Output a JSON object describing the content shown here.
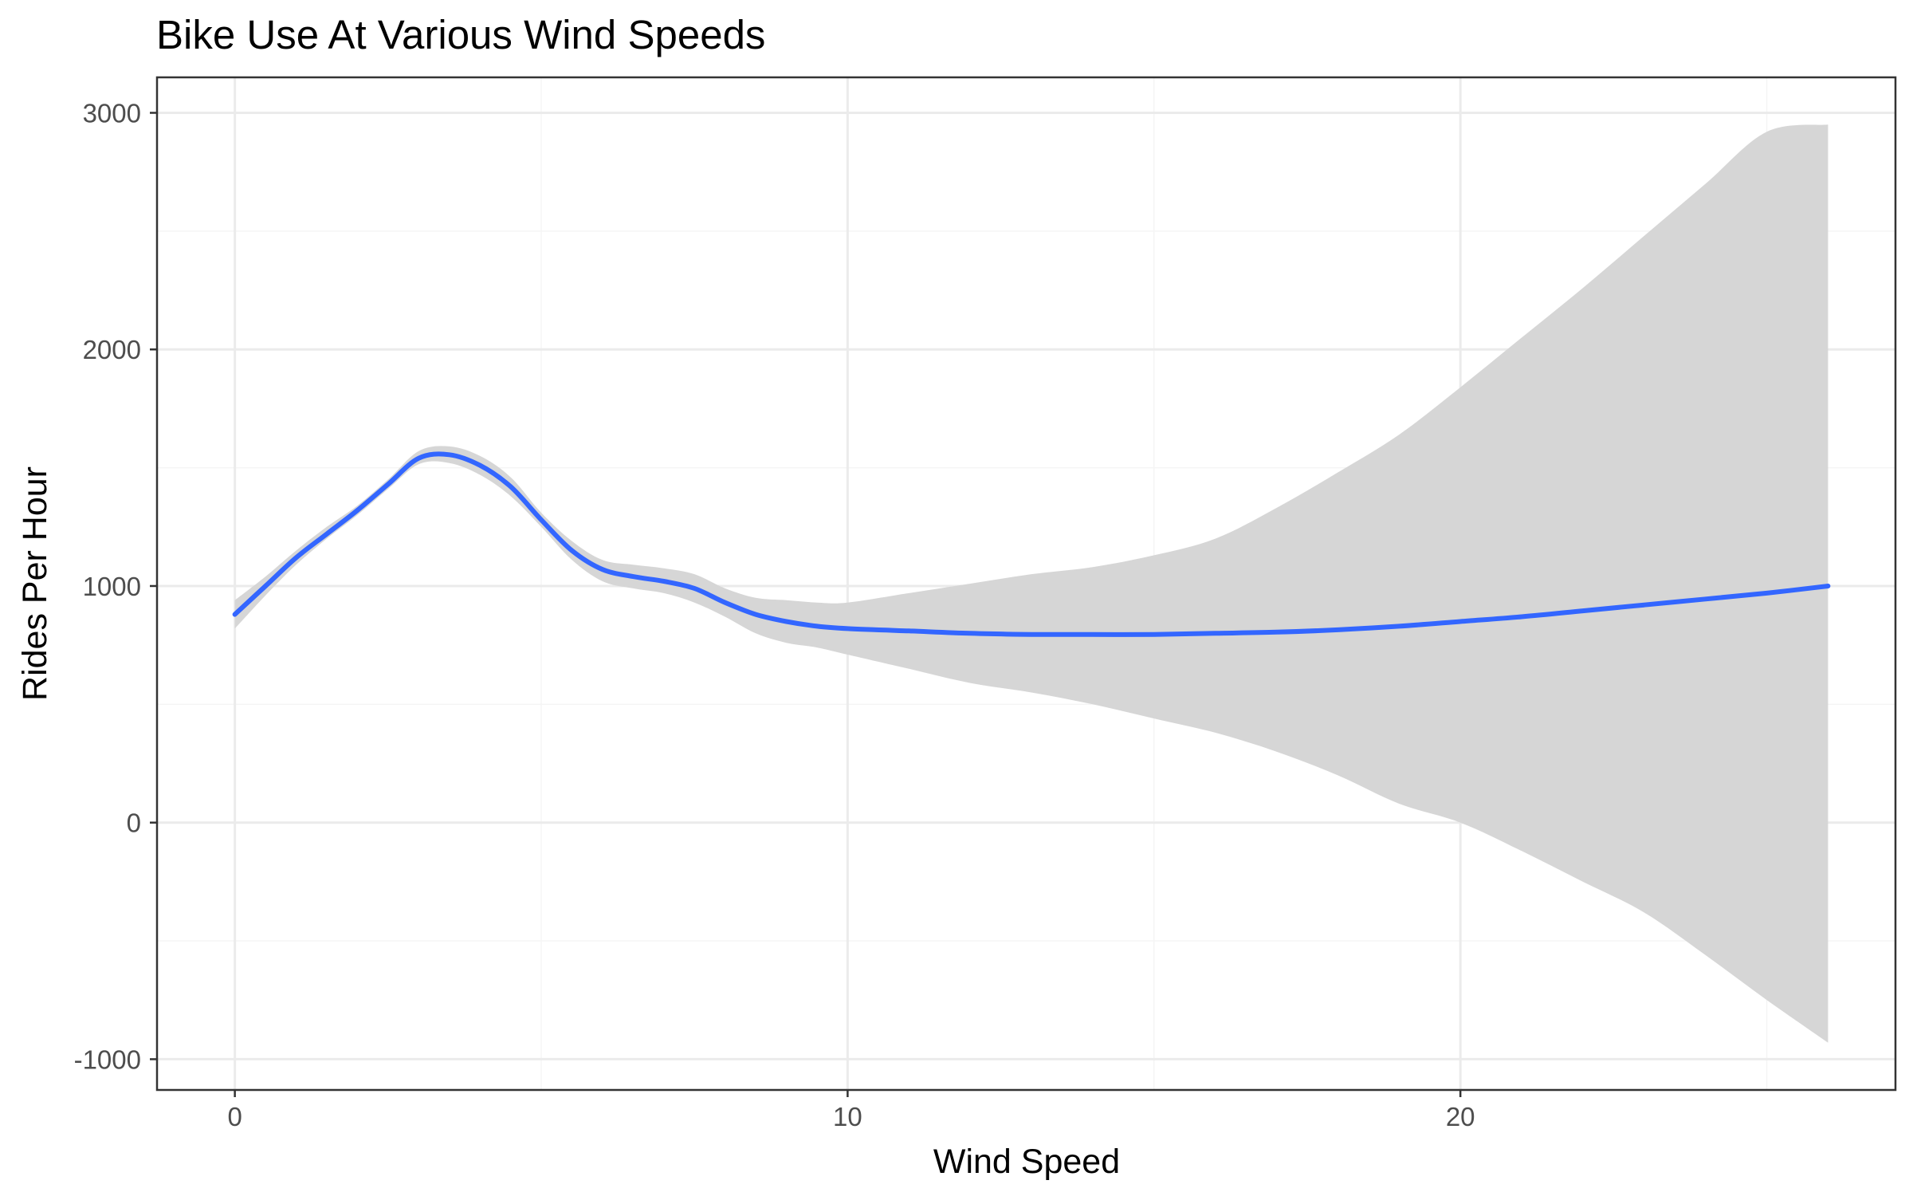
{
  "chart_data": {
    "type": "line",
    "title": "Bike Use At Various Wind Speeds",
    "xlabel": "Wind Speed",
    "ylabel": "Rides Per Hour",
    "xlim": [
      -1.27,
      27.1
    ],
    "ylim": [
      -1130,
      3150
    ],
    "x_ticks": [
      0,
      10,
      20
    ],
    "x_tick_labels": [
      "0",
      "10",
      "20"
    ],
    "y_ticks": [
      -1000,
      0,
      1000,
      2000,
      3000
    ],
    "y_tick_labels": [
      "-1000",
      "0",
      "1000",
      "2000",
      "3000"
    ],
    "x_minor_breaks": [
      5,
      15,
      25
    ],
    "y_minor_breaks": [
      -500,
      500,
      1500,
      2500
    ],
    "grid": true,
    "theme": "bw",
    "colors": {
      "line": "#3366ff",
      "ribbon": "#d6d6d6",
      "grid_major": "#ebebeb",
      "grid_minor": "#f5f5f5",
      "panel_border": "#333333"
    },
    "series": [
      {
        "role": "smooth",
        "x": [
          0,
          0.5,
          1,
          1.5,
          2,
          2.5,
          3,
          3.5,
          4,
          4.5,
          5,
          5.5,
          6,
          6.5,
          7,
          7.5,
          8,
          8.5,
          9,
          9.5,
          10,
          11,
          12,
          13,
          14,
          15,
          16,
          17,
          18,
          19,
          20,
          21,
          22,
          23,
          24,
          25,
          26
        ],
        "y": [
          880,
          1000,
          1120,
          1220,
          1320,
          1430,
          1540,
          1555,
          1510,
          1420,
          1280,
          1150,
          1070,
          1040,
          1020,
          990,
          930,
          880,
          850,
          830,
          820,
          810,
          800,
          795,
          795,
          795,
          800,
          805,
          815,
          830,
          850,
          870,
          895,
          920,
          945,
          970,
          1000
        ],
        "ymin": [
          820,
          960,
          1090,
          1200,
          1300,
          1410,
          1515,
          1520,
          1470,
          1380,
          1250,
          1110,
          1020,
          990,
          970,
          930,
          870,
          800,
          760,
          740,
          710,
          650,
          590,
          550,
          500,
          440,
          380,
          300,
          200,
          80,
          0,
          -120,
          -250,
          -380,
          -560,
          -750,
          -930
        ],
        "ymax": [
          940,
          1040,
          1150,
          1250,
          1340,
          1450,
          1570,
          1590,
          1550,
          1460,
          1310,
          1190,
          1110,
          1090,
          1075,
          1050,
          990,
          950,
          940,
          930,
          930,
          970,
          1010,
          1050,
          1080,
          1130,
          1200,
          1330,
          1480,
          1640,
          1840,
          2050,
          2260,
          2480,
          2700,
          2920,
          2950
        ]
      }
    ]
  }
}
